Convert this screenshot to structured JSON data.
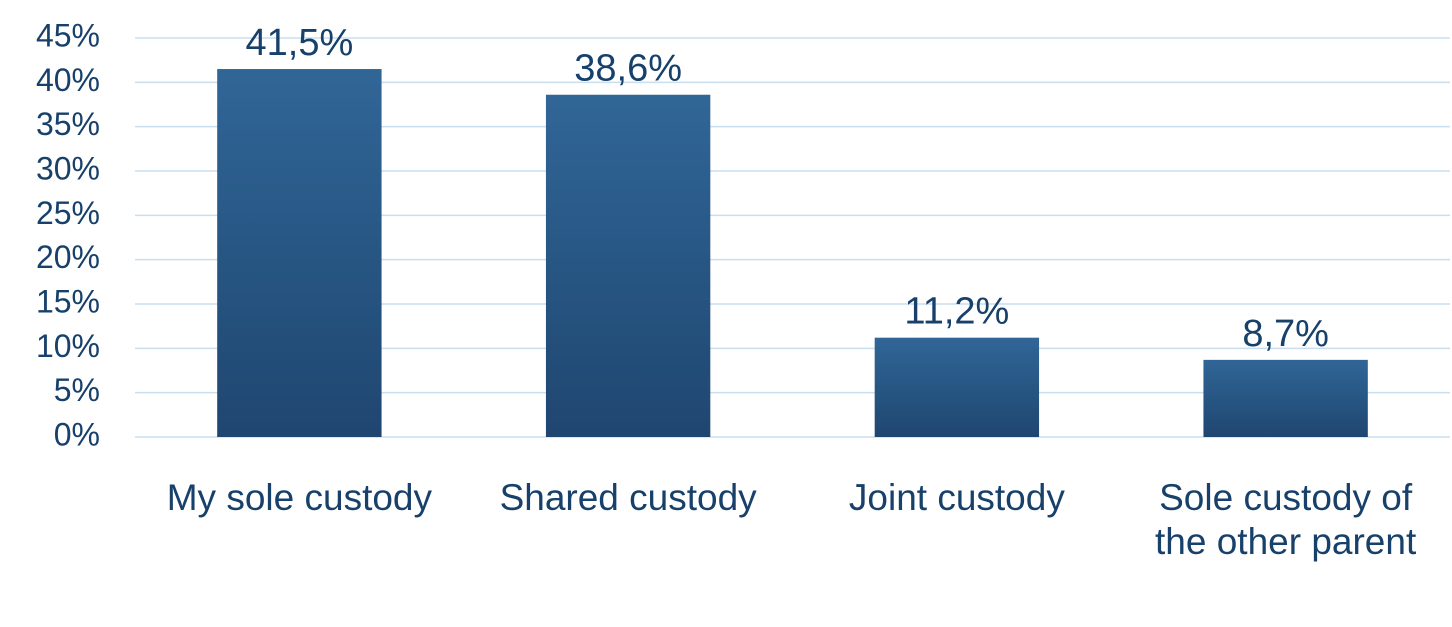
{
  "chart_data": {
    "type": "bar",
    "categories": [
      "My sole custody",
      "Shared custody",
      "Joint custody",
      "Sole custody of the other parent"
    ],
    "values": [
      41.5,
      38.6,
      11.2,
      8.7
    ],
    "value_labels": [
      "41,5%",
      "38,6%",
      "11,2%",
      "8,7%"
    ],
    "color": "#2a5a8a",
    "ylim": [
      0,
      45
    ],
    "yticks": [
      {
        "value": 0,
        "label": "0%"
      },
      {
        "value": 5,
        "label": "5%"
      },
      {
        "value": 10,
        "label": "10%"
      },
      {
        "value": 15,
        "label": "15%"
      },
      {
        "value": 20,
        "label": "20%"
      },
      {
        "value": 25,
        "label": "25%"
      },
      {
        "value": 30,
        "label": "30%"
      },
      {
        "value": 35,
        "label": "35%"
      },
      {
        "value": 40,
        "label": "40%"
      },
      {
        "value": 45,
        "label": "45%"
      }
    ],
    "grid": true
  }
}
